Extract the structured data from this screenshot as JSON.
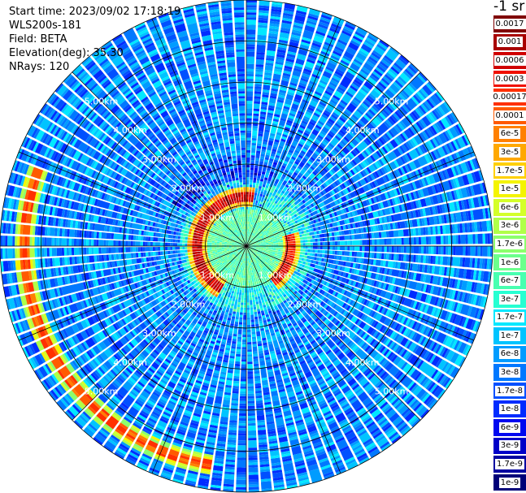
{
  "info": {
    "start_time": "Start time: 2023/09/02 17:18:19",
    "instrument": "WLS200s-181",
    "field": "Field: BETA",
    "elevation": "Elevation(deg): 35.30",
    "nrays": "NRays: 120"
  },
  "colorbar": {
    "unit": "-1 sr",
    "items": [
      {
        "label": "0.0017",
        "color": "#800000"
      },
      {
        "label": "0.001",
        "color": "#a80000"
      },
      {
        "label": "0.0006",
        "color": "#d00000"
      },
      {
        "label": "0.0003",
        "color": "#f01000"
      },
      {
        "label": "0.00017",
        "color": "#ff3000"
      },
      {
        "label": "0.0001",
        "color": "#ff5a00"
      },
      {
        "label": "6e-5",
        "color": "#ff8000"
      },
      {
        "label": "3e-5",
        "color": "#ffa800"
      },
      {
        "label": "1.7e-5",
        "color": "#ffd000"
      },
      {
        "label": "1e-5",
        "color": "#f4f400"
      },
      {
        "label": "6e-6",
        "color": "#d4ff2a"
      },
      {
        "label": "3e-6",
        "color": "#b0ff48"
      },
      {
        "label": "1.7e-6",
        "color": "#8cff6c"
      },
      {
        "label": "1e-6",
        "color": "#6cff8c"
      },
      {
        "label": "6e-7",
        "color": "#48ffb0"
      },
      {
        "label": "3e-7",
        "color": "#26ffd2"
      },
      {
        "label": "1.7e-7",
        "color": "#00e8ff"
      },
      {
        "label": "1e-7",
        "color": "#00c4ff"
      },
      {
        "label": "6e-8",
        "color": "#009cff"
      },
      {
        "label": "3e-8",
        "color": "#0078ff"
      },
      {
        "label": "1.7e-8",
        "color": "#0050ff"
      },
      {
        "label": "1e-8",
        "color": "#002cff"
      },
      {
        "label": "6e-9",
        "color": "#0008f0"
      },
      {
        "label": "3e-9",
        "color": "#0000c8"
      },
      {
        "label": "1.7e-9",
        "color": "#0000a0"
      },
      {
        "label": "1e-9",
        "color": "#000078"
      }
    ]
  },
  "chart_data": {
    "type": "heatmap",
    "projection": "polar",
    "field": "BETA",
    "scale": "log",
    "rings_km": [
      1,
      2,
      3,
      4,
      5,
      6
    ],
    "ring_labels": [
      "1.00km",
      "2.00km",
      "3.00km",
      "4.00km",
      "5.00km"
    ],
    "spoke_count": 16,
    "nrays": 120,
    "max_range_km": 6,
    "features": [
      {
        "kind": "aerosol_arc",
        "range_km": 1.2,
        "azimuth_from_deg": 210,
        "azimuth_to_deg": 10,
        "value": 0.0006
      },
      {
        "kind": "aerosol_arc",
        "range_km": 1.1,
        "azimuth_from_deg": 75,
        "azimuth_to_deg": 145,
        "value": 0.0003
      },
      {
        "kind": "cloud_ring",
        "range_km": 5.4,
        "azimuth_from_deg": 190,
        "azimuth_to_deg": 290,
        "value": 0.0001
      }
    ]
  }
}
